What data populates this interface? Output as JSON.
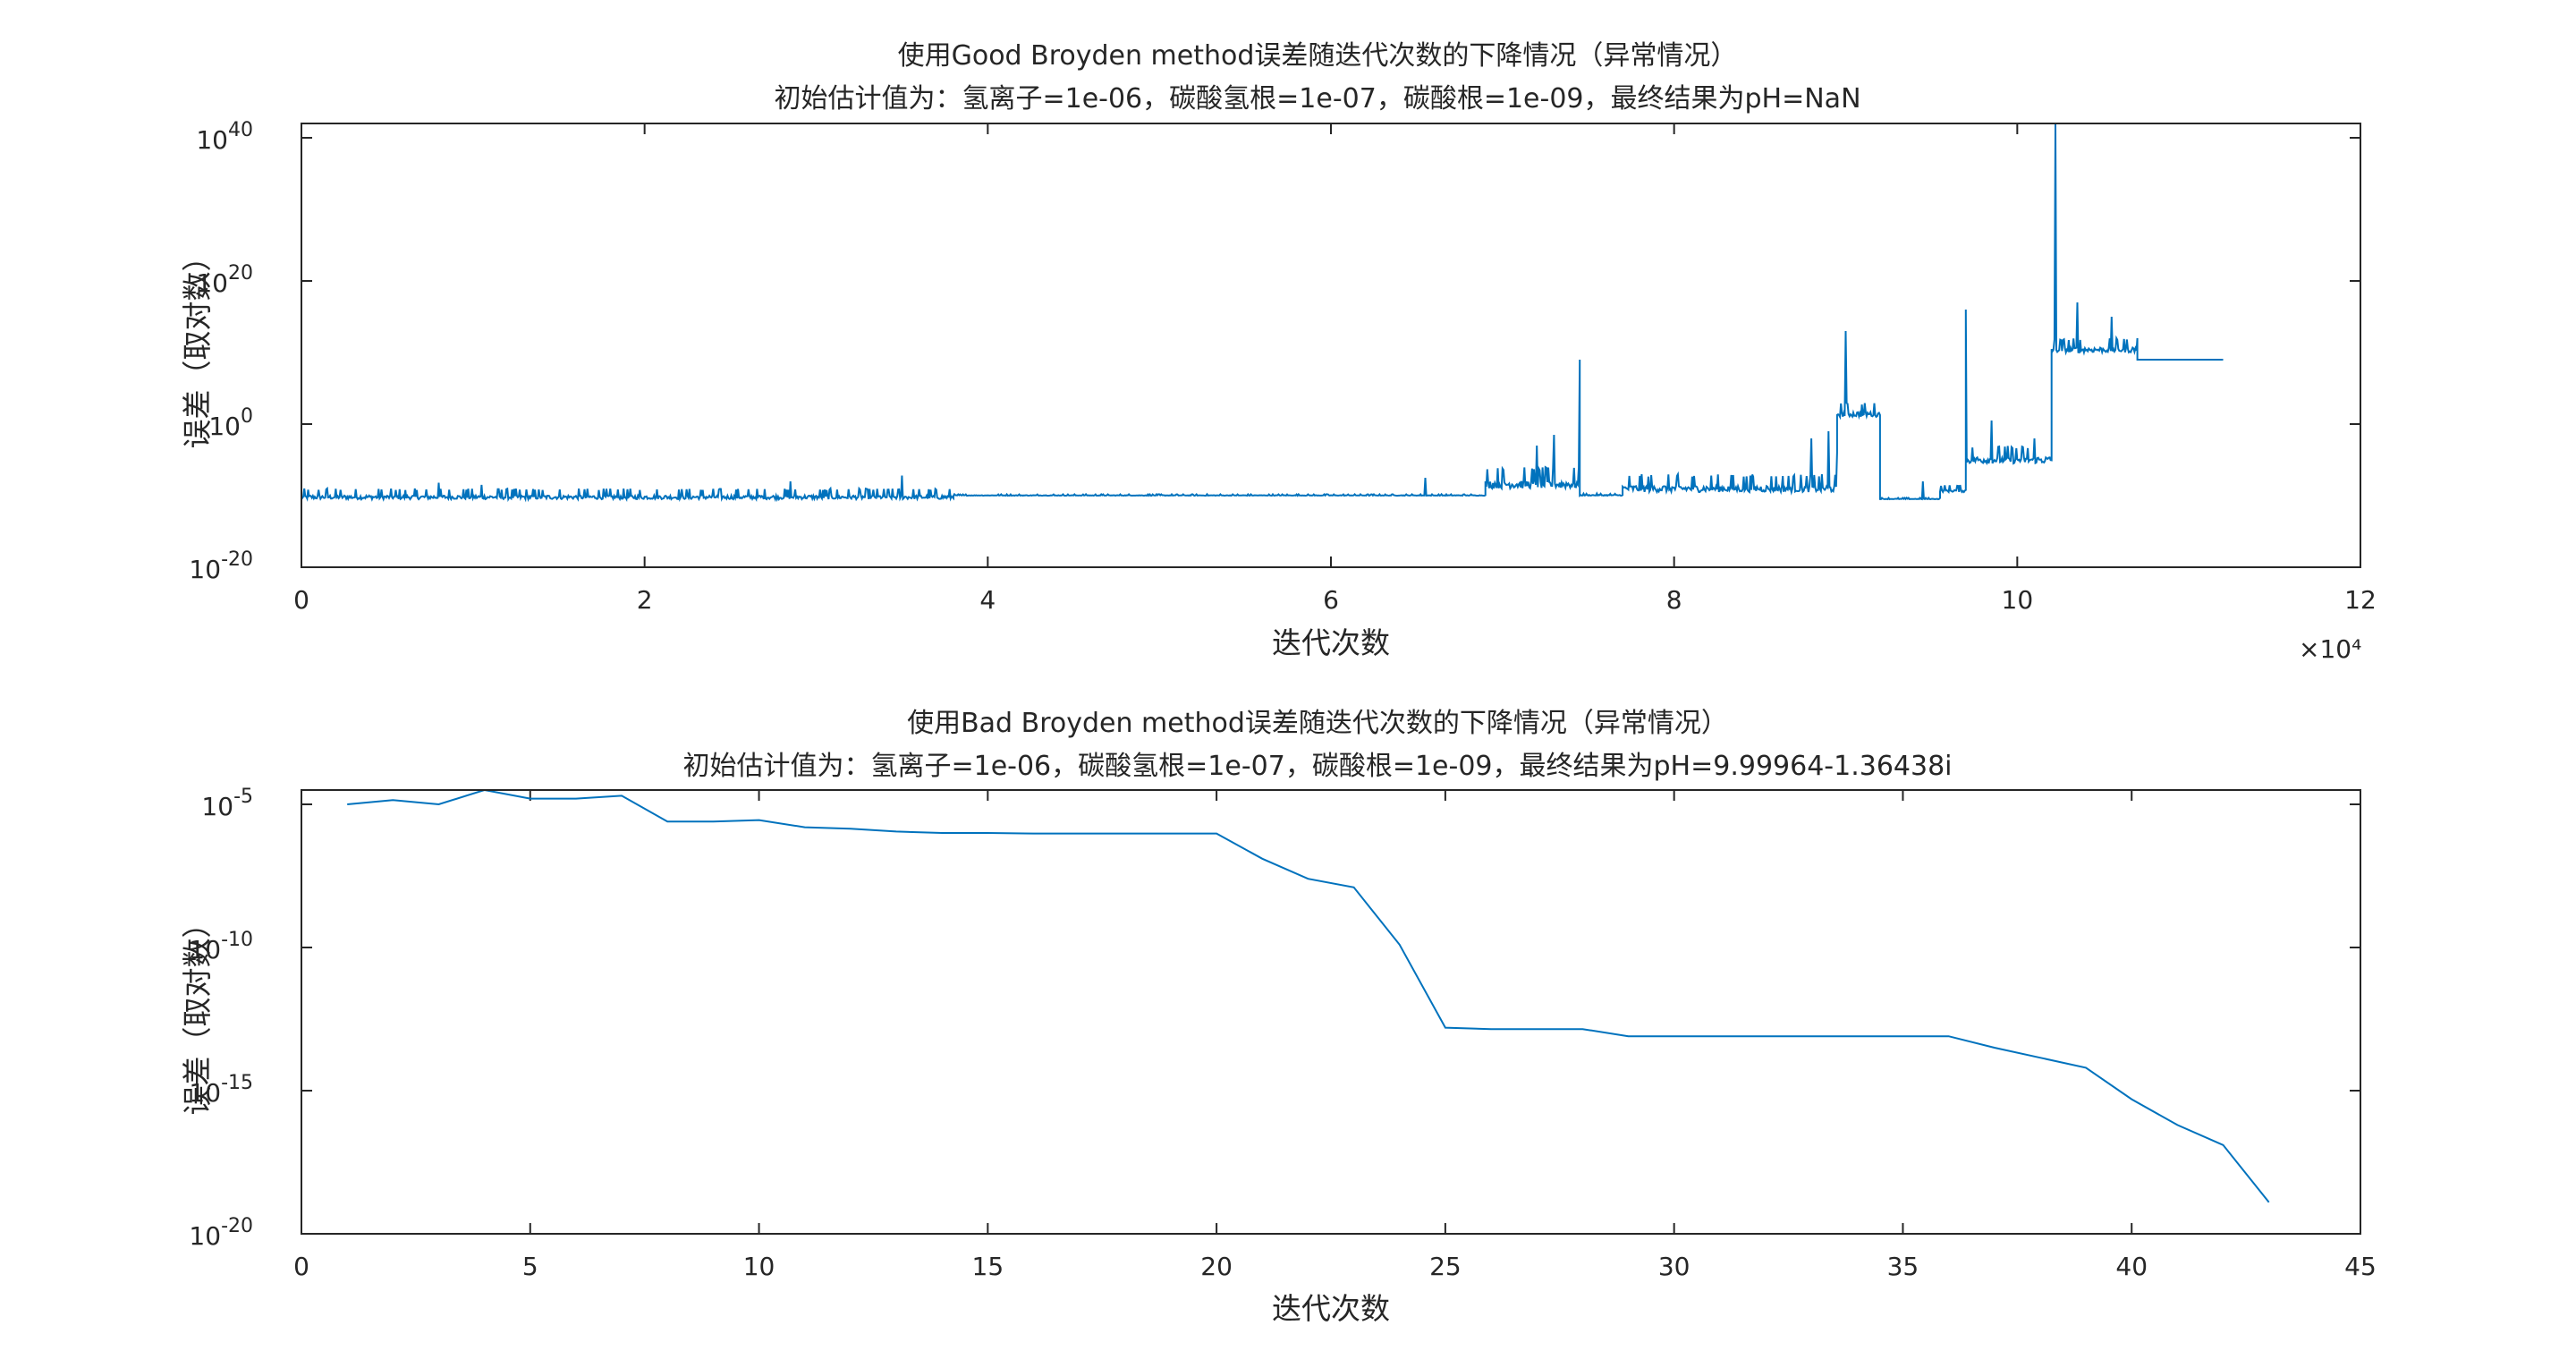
{
  "chart_data": [
    {
      "type": "line",
      "title": "使用Good Broyden method误差随迭代次数的下降情况（异常情况）",
      "subtitle": "初始估计值为：氢离子=1e-06，碳酸氢根=1e-07，碳酸根=1e-09，最终结果为pH=NaN",
      "xlabel": "迭代次数",
      "ylabel": "误差（取对数）",
      "x_scale_label": "×10⁴",
      "xlim": [
        0,
        12
      ],
      "ylim_log10": [
        -20,
        42
      ],
      "yscale": "log",
      "x_ticks": [
        "0",
        "2",
        "4",
        "6",
        "8",
        "10",
        "12"
      ],
      "y_ticks": [
        {
          "exp": "-20",
          "base": "10"
        },
        {
          "exp": "0",
          "base": "10"
        },
        {
          "exp": "20",
          "base": "10"
        },
        {
          "exp": "40",
          "base": "10"
        }
      ],
      "x_unit_multiplier": 10000,
      "series": [
        {
          "color": "#0072BD",
          "segments": [
            {
              "x_start": 0.0,
              "x_end": 3.8,
              "log10_base": -10.5,
              "log10_noise": 1.5,
              "spikes": [
                [
                  0.15,
                  -9.0
                ],
                [
                  0.8,
                  -8.2
                ],
                [
                  1.05,
                  -8.5
                ],
                [
                  2.85,
                  -8.0
                ],
                [
                  3.5,
                  -7.2
                ]
              ]
            },
            {
              "x_start": 3.8,
              "x_end": 6.9,
              "log10_base": -10.0,
              "log10_noise": 0.2,
              "spikes": [
                [
                  6.55,
                  -7.5
                ]
              ]
            },
            {
              "x_start": 6.9,
              "x_end": 7.45,
              "log10_base": -9.0,
              "log10_noise": 3.0,
              "spikes": [
                [
                  7.2,
                  -3.0
                ],
                [
                  7.3,
                  -1.5
                ],
                [
                  7.45,
                  9.0
                ]
              ]
            },
            {
              "x_start": 7.45,
              "x_end": 7.7,
              "log10_base": -10.0,
              "log10_noise": 0.3,
              "spikes": []
            },
            {
              "x_start": 7.7,
              "x_end": 8.95,
              "log10_base": -9.5,
              "log10_noise": 2.5,
              "spikes": [
                [
                  8.8,
                  -2.0
                ],
                [
                  8.9,
                  -1.0
                ],
                [
                  8.95,
                  -4.0
                ]
              ]
            },
            {
              "x_start": 8.95,
              "x_end": 9.2,
              "log10_base": 1.0,
              "log10_noise": 2.0,
              "spikes": [
                [
                  9.0,
                  13.0
                ]
              ]
            },
            {
              "x_start": 9.2,
              "x_end": 9.55,
              "log10_base": -10.5,
              "log10_noise": 0.2,
              "spikes": [
                [
                  9.45,
                  -8.0
                ]
              ]
            },
            {
              "x_start": 9.55,
              "x_end": 9.7,
              "log10_base": -9.5,
              "log10_noise": 1.0,
              "spikes": []
            },
            {
              "x_start": 9.7,
              "x_end": 10.2,
              "log10_base": -5.5,
              "log10_noise": 2.5,
              "spikes": [
                [
                  9.7,
                  16.0
                ],
                [
                  9.85,
                  0.5
                ],
                [
                  10.1,
                  -2.0
                ]
              ]
            },
            {
              "x_start": 10.2,
              "x_end": 10.7,
              "log10_base": 10.0,
              "log10_noise": 2.0,
              "spikes": [
                [
                  10.22,
                  42.0
                ],
                [
                  10.35,
                  17.0
                ],
                [
                  10.55,
                  15.0
                ],
                [
                  10.7,
                  12.0
                ]
              ]
            },
            {
              "x_start": 10.7,
              "x_end": 11.2,
              "log10_base": 9.0,
              "log10_noise": 0.0,
              "spikes": []
            }
          ]
        }
      ]
    },
    {
      "type": "line",
      "title": "使用Bad Broyden method误差随迭代次数的下降情况（异常情况）",
      "subtitle": "初始估计值为：氢离子=1e-06，碳酸氢根=1e-07，碳酸根=1e-09，最终结果为pH=9.99964-1.36438i",
      "xlabel": "迭代次数",
      "ylabel": "误差（取对数）",
      "xlim": [
        0,
        45
      ],
      "ylim_log10": [
        -20,
        -4.5
      ],
      "yscale": "log",
      "x_ticks": [
        "0",
        "5",
        "10",
        "15",
        "20",
        "25",
        "30",
        "35",
        "40",
        "45"
      ],
      "y_ticks": [
        {
          "exp": "-20",
          "base": "10"
        },
        {
          "exp": "-15",
          "base": "10"
        },
        {
          "exp": "-10",
          "base": "10"
        },
        {
          "exp": "-5",
          "base": "10"
        }
      ],
      "series": [
        {
          "color": "#0072BD",
          "x": [
            1,
            2,
            3,
            4,
            5,
            6,
            7,
            8,
            9,
            10,
            11,
            12,
            13,
            14,
            15,
            16,
            17,
            18,
            19,
            20,
            21,
            22,
            23,
            24,
            25,
            26,
            27,
            28,
            29,
            30,
            31,
            32,
            33,
            34,
            35,
            36,
            37,
            38,
            39,
            40,
            41,
            42,
            43
          ],
          "log10_y": [
            -5.0,
            -4.85,
            -5.0,
            -4.5,
            -4.8,
            -4.8,
            -4.7,
            -5.6,
            -5.6,
            -5.55,
            -5.8,
            -5.85,
            -5.95,
            -6.0,
            -6.0,
            -6.02,
            -6.02,
            -6.02,
            -6.02,
            -6.02,
            -6.9,
            -7.6,
            -7.9,
            -9.9,
            -12.8,
            -12.85,
            -12.85,
            -12.85,
            -13.1,
            -13.1,
            -13.1,
            -13.1,
            -13.1,
            -13.1,
            -13.1,
            -13.1,
            -13.5,
            -13.85,
            -14.2,
            -15.3,
            -16.2,
            -16.9,
            -18.9
          ]
        }
      ]
    }
  ]
}
